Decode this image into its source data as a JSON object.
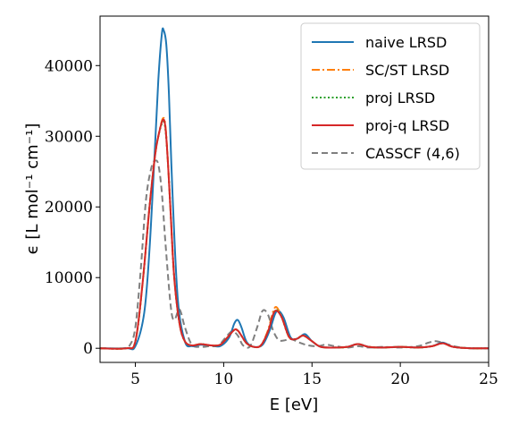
{
  "chart_data": {
    "type": "line",
    "xlabel": "E [eV]",
    "ylabel": "ϵ [L mol⁻¹ cm⁻¹]",
    "xlim": [
      3,
      25
    ],
    "ylim": [
      -2000,
      47000
    ],
    "xticks": [
      5,
      10,
      15,
      20,
      25
    ],
    "yticks": [
      0,
      10000,
      20000,
      30000,
      40000
    ],
    "xtick_labels": [
      "5",
      "10",
      "15",
      "20",
      "25"
    ],
    "ytick_labels": [
      "0",
      "10000",
      "20000",
      "30000",
      "40000"
    ],
    "legend_position": "top-right",
    "grid": false,
    "series": [
      {
        "name": "naive LRSD",
        "color": "#1f77b4",
        "dash": "solid",
        "x": [
          3,
          4.5,
          5.0,
          5.5,
          5.8,
          6.1,
          6.3,
          6.5,
          6.6,
          6.75,
          6.9,
          7.1,
          7.4,
          7.8,
          8.2,
          8.7,
          9.3,
          9.8,
          10.3,
          10.6,
          10.8,
          11.0,
          11.3,
          11.7,
          12.2,
          12.6,
          12.9,
          13.1,
          13.4,
          13.8,
          14.2,
          14.6,
          15.0,
          15.5,
          16.3,
          17.0,
          17.6,
          18.2,
          19.0,
          20.0,
          21.0,
          21.8,
          22.4,
          23.0,
          24.0,
          25
        ],
        "y": [
          0,
          0,
          300,
          5000,
          14000,
          28000,
          38000,
          44500,
          45000,
          43000,
          36000,
          22000,
          7000,
          1000,
          300,
          500,
          400,
          300,
          1500,
          3500,
          4000,
          3000,
          900,
          200,
          500,
          2500,
          4800,
          5300,
          4300,
          1500,
          1400,
          2000,
          1000,
          200,
          100,
          200,
          600,
          200,
          100,
          200,
          100,
          300,
          800,
          200,
          0,
          0
        ]
      },
      {
        "name": "SC/ST LRSD",
        "color": "#ff7f0e",
        "dash": "dashdot",
        "x": [
          3,
          4.5,
          5.0,
          5.4,
          5.8,
          6.1,
          6.3,
          6.55,
          6.7,
          6.85,
          7.0,
          7.2,
          7.5,
          7.8,
          8.2,
          8.7,
          9.3,
          9.8,
          10.2,
          10.6,
          10.8,
          11.0,
          11.3,
          11.7,
          12.1,
          12.5,
          12.8,
          13.0,
          13.3,
          13.7,
          14.1,
          14.5,
          15.0,
          15.5,
          16.3,
          17.0,
          17.6,
          18.2,
          19.0,
          20.0,
          21.0,
          21.8,
          22.4,
          23.0,
          24.0,
          25
        ],
        "y": [
          0,
          0,
          1000,
          9000,
          20000,
          27000,
          30000,
          32500,
          31500,
          26000,
          19000,
          10000,
          3500,
          1000,
          400,
          600,
          400,
          500,
          1500,
          2600,
          2500,
          1800,
          700,
          200,
          400,
          2500,
          5200,
          5800,
          4300,
          1600,
          1300,
          1800,
          1000,
          200,
          100,
          200,
          600,
          200,
          100,
          200,
          100,
          300,
          700,
          200,
          0,
          0
        ]
      },
      {
        "name": "proj LRSD",
        "color": "#2ca02c",
        "dash": "dotted",
        "x": [
          3,
          4.5,
          5.0,
          5.4,
          5.8,
          6.1,
          6.3,
          6.55,
          6.7,
          6.85,
          7.0,
          7.2,
          7.5,
          7.8,
          8.2,
          8.7,
          9.3,
          9.8,
          10.2,
          10.6,
          10.8,
          11.0,
          11.3,
          11.7,
          12.1,
          12.5,
          12.8,
          13.0,
          13.3,
          13.7,
          14.1,
          14.5,
          15.0,
          15.5,
          16.3,
          17.0,
          17.6,
          18.2,
          19.0,
          20.0,
          21.0,
          21.8,
          22.4,
          23.0,
          24.0,
          25
        ],
        "y": [
          0,
          0,
          1000,
          9000,
          20000,
          27000,
          30000,
          32000,
          31000,
          26000,
          19000,
          10000,
          3500,
          1000,
          400,
          600,
          400,
          500,
          1500,
          2600,
          2500,
          1800,
          700,
          200,
          400,
          2300,
          4800,
          5400,
          4300,
          1600,
          1300,
          1800,
          1000,
          200,
          100,
          200,
          600,
          200,
          100,
          200,
          100,
          300,
          700,
          200,
          0,
          0
        ]
      },
      {
        "name": "proj-q LRSD",
        "color": "#d62728",
        "dash": "solid",
        "x": [
          3,
          4.5,
          5.0,
          5.4,
          5.8,
          6.1,
          6.3,
          6.55,
          6.7,
          6.85,
          7.0,
          7.2,
          7.5,
          7.8,
          8.2,
          8.7,
          9.3,
          9.8,
          10.2,
          10.6,
          10.8,
          11.0,
          11.3,
          11.7,
          12.1,
          12.5,
          12.8,
          13.0,
          13.3,
          13.7,
          14.1,
          14.5,
          15.0,
          15.5,
          16.3,
          17.0,
          17.6,
          18.2,
          19.0,
          20.0,
          21.0,
          21.8,
          22.4,
          23.0,
          24.0,
          25
        ],
        "y": [
          0,
          0,
          1000,
          9000,
          20000,
          27000,
          30000,
          32300,
          31300,
          26000,
          19000,
          10000,
          3500,
          1000,
          400,
          600,
          400,
          500,
          1500,
          2600,
          2500,
          1800,
          700,
          200,
          400,
          2300,
          4800,
          5300,
          4300,
          1600,
          1300,
          1800,
          1000,
          200,
          100,
          200,
          600,
          200,
          100,
          200,
          100,
          300,
          700,
          200,
          0,
          0
        ]
      },
      {
        "name": "CASSCF (4,6)",
        "color": "#7f7f7f",
        "dash": "dashed",
        "x": [
          3,
          4.3,
          4.7,
          5.0,
          5.3,
          5.6,
          5.9,
          6.1,
          6.3,
          6.5,
          6.7,
          7.0,
          7.2,
          7.5,
          7.8,
          8.2,
          8.7,
          9.2,
          9.7,
          10.2,
          10.5,
          10.8,
          11.1,
          11.5,
          11.9,
          12.2,
          12.5,
          12.8,
          13.1,
          13.4,
          13.8,
          14.3,
          14.8,
          15.3,
          15.8,
          16.3,
          17.0,
          17.6,
          18.2,
          19.0,
          20.0,
          21.0,
          21.6,
          22.0,
          22.5,
          23.2,
          24.0,
          25
        ],
        "y": [
          0,
          0,
          500,
          3000,
          11000,
          21000,
          25500,
          26500,
          26000,
          22000,
          15000,
          6000,
          4000,
          5500,
          3000,
          500,
          200,
          300,
          400,
          1800,
          2400,
          1800,
          400,
          300,
          3000,
          5300,
          4800,
          2500,
          1200,
          1100,
          1300,
          800,
          400,
          300,
          500,
          300,
          100,
          300,
          100,
          200,
          100,
          300,
          800,
          1000,
          700,
          200,
          0,
          0
        ]
      }
    ]
  }
}
